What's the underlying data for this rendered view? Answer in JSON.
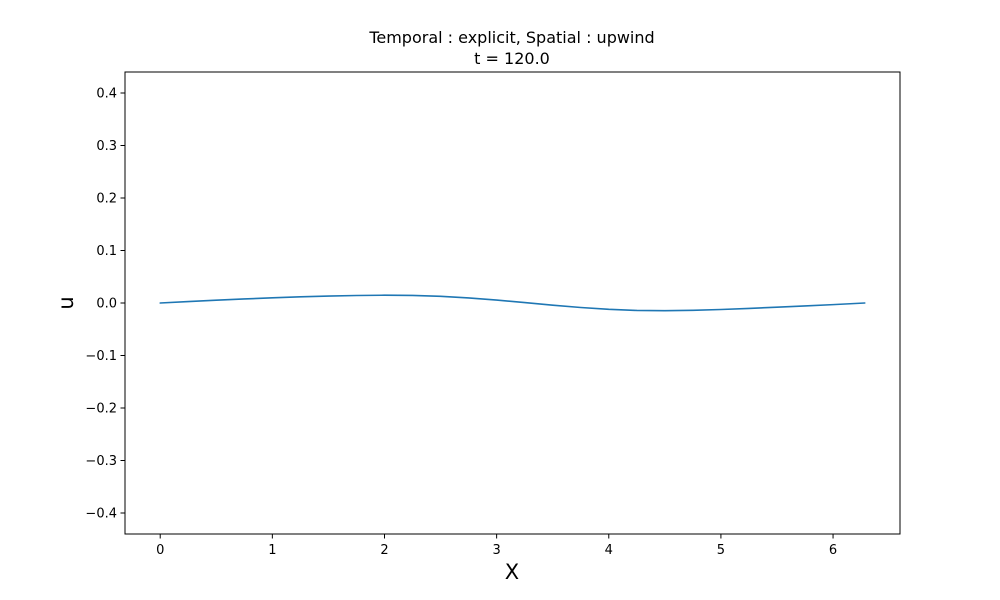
{
  "chart_data": {
    "type": "line",
    "title": "Temporal : explicit, Spatial : upwind",
    "subtitle": "t = 120.0",
    "xlabel": "X",
    "ylabel": "u",
    "xlim": [
      -0.314,
      6.597
    ],
    "ylim": [
      -0.44,
      0.44
    ],
    "xticks": [
      0,
      1,
      2,
      3,
      4,
      5,
      6
    ],
    "yticks": [
      -0.4,
      -0.3,
      -0.2,
      -0.1,
      0.0,
      0.1,
      0.2,
      0.3,
      0.4
    ],
    "xtick_labels": [
      "0",
      "1",
      "2",
      "3",
      "4",
      "5",
      "6"
    ],
    "ytick_labels": [
      "−0.4",
      "−0.3",
      "−0.2",
      "−0.1",
      "0.0",
      "0.1",
      "0.2",
      "0.3",
      "0.4"
    ],
    "grid": false,
    "legend": "none",
    "series": [
      {
        "color": "#1f77b4",
        "x": [
          0,
          0.25,
          0.5,
          0.75,
          1.0,
          1.25,
          1.5,
          1.75,
          2.0,
          2.25,
          2.5,
          2.75,
          3.0,
          3.25,
          3.5,
          3.75,
          4.0,
          4.25,
          4.5,
          4.75,
          5.0,
          5.25,
          5.5,
          5.75,
          6.0,
          6.283
        ],
        "y": [
          0.0,
          0.0028,
          0.0053,
          0.0077,
          0.0098,
          0.0117,
          0.0133,
          0.0143,
          0.0148,
          0.0144,
          0.0127,
          0.0096,
          0.0055,
          0.0008,
          -0.0042,
          -0.0086,
          -0.0121,
          -0.0142,
          -0.0147,
          -0.014,
          -0.0124,
          -0.0103,
          -0.008,
          -0.0056,
          -0.0031,
          0.0
        ]
      }
    ]
  }
}
